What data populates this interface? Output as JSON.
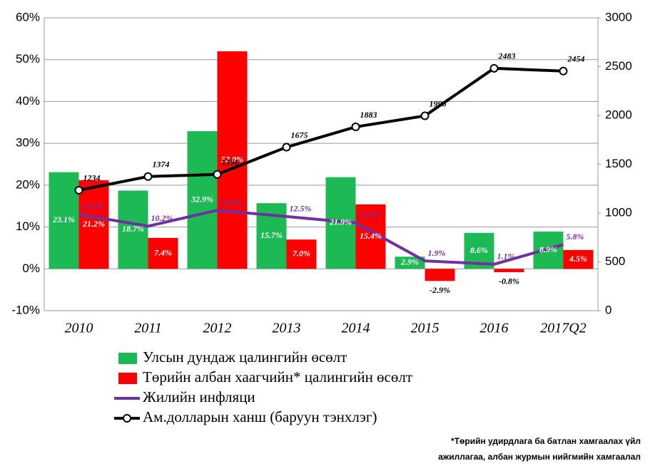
{
  "chart_data": {
    "type": "bar",
    "categories": [
      "2010",
      "2011",
      "2012",
      "2013",
      "2014",
      "2015",
      "2016",
      "2017Q2"
    ],
    "ylim": [
      -10,
      60
    ],
    "yticks": [
      {
        "value": -10,
        "label": "-10%"
      },
      {
        "value": 0,
        "label": "0%"
      },
      {
        "value": 10,
        "label": "10%"
      },
      {
        "value": 20,
        "label": "20%"
      },
      {
        "value": 30,
        "label": "30%"
      },
      {
        "value": 40,
        "label": "40%"
      },
      {
        "value": 50,
        "label": "50%"
      },
      {
        "value": 60,
        "label": "60%"
      }
    ],
    "y2lim": [
      0,
      3000
    ],
    "y2ticks": [
      0,
      500,
      1000,
      1500,
      2000,
      2500,
      3000
    ],
    "grid": true,
    "series": [
      {
        "name": "Улсын дундаж цалингийн өсөлт",
        "type": "bar",
        "color": "#1db954",
        "values": [
          23.1,
          18.7,
          32.9,
          15.7,
          21.9,
          2.9,
          8.6,
          8.9
        ],
        "value_labels": [
          "23.1%",
          "18.7%",
          "32.9%",
          "15.7%",
          "21.9%",
          "2.9%",
          "8.6%",
          "8.9%"
        ]
      },
      {
        "name": "Төрийн албан хаагчийн* цалингийн өсөлт",
        "type": "bar",
        "color": "#ff0000",
        "values": [
          21.2,
          7.4,
          52.0,
          7.0,
          15.4,
          -2.9,
          -0.8,
          4.5
        ],
        "value_labels": [
          "21.2%",
          "7.4%",
          "52.0%",
          "7.0%",
          "15.4%",
          "-2.9%",
          "-0.8%",
          "4.5%"
        ]
      },
      {
        "name": "Жилийн инфляци",
        "type": "line",
        "color": "#7030a0",
        "values": [
          13.0,
          10.2,
          14.0,
          12.5,
          11.0,
          1.9,
          1.1,
          5.8
        ],
        "value_labels": [
          "13.0%",
          "10.2%",
          "14.0%",
          "12.5%",
          "11.0%",
          "1.9%",
          "1.1%",
          "5.8%"
        ]
      },
      {
        "name": "Ам.долларын ханш (баруун тэнхлэг)",
        "type": "line",
        "axis": "y2",
        "color": "#000000",
        "markers": true,
        "values": [
          1234,
          1374,
          1396,
          1675,
          1883,
          1996,
          2483,
          2454
        ]
      }
    ],
    "footnote": [
      "*Төрийн удирдлага ба батлан хамгаалах үйл",
      "ажиллагаа, албан журмын нийгмийн хамгаалал"
    ]
  }
}
